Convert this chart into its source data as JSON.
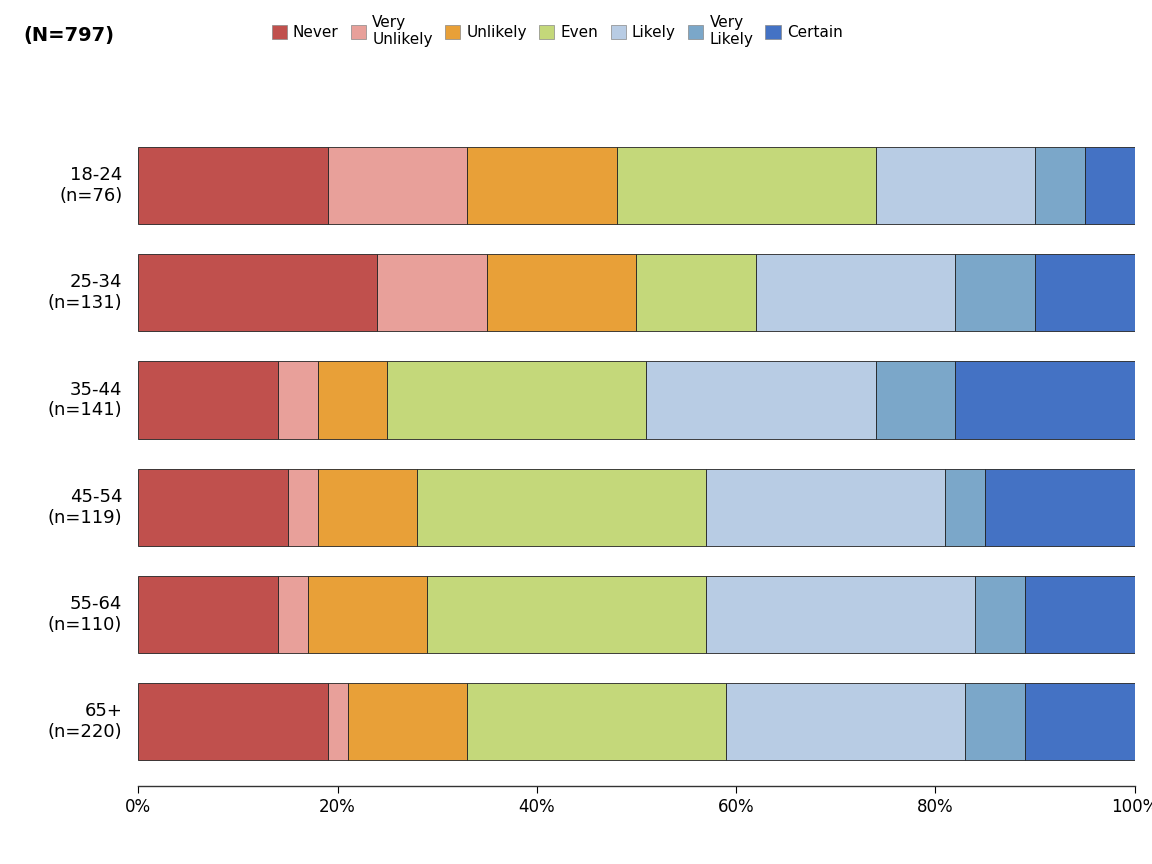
{
  "title": "(N=797)",
  "categories": [
    "18-24\n(n=76)",
    "25-34\n(n=131)",
    "35-44\n(n=141)",
    "45-54\n(n=119)",
    "55-64\n(n=110)",
    "65+\n(n=220)"
  ],
  "legend_labels": [
    "Never",
    "Very\nUnlikely",
    "Unlikely",
    "Even",
    "Likely",
    "Very\nLikely",
    "Certain"
  ],
  "colors": [
    "#c0504d",
    "#e8a09a",
    "#e8a038",
    "#c4d87a",
    "#b8cce4",
    "#7ba7c9",
    "#4472c4"
  ],
  "data": [
    [
      19.0,
      14.0,
      15.0,
      26.0,
      16.0,
      5.0,
      5.0
    ],
    [
      24.0,
      11.0,
      15.0,
      12.0,
      20.0,
      8.0,
      10.0
    ],
    [
      14.0,
      4.0,
      7.0,
      26.0,
      23.0,
      8.0,
      18.0
    ],
    [
      15.0,
      3.0,
      10.0,
      29.0,
      24.0,
      4.0,
      15.0
    ],
    [
      14.0,
      3.0,
      12.0,
      28.0,
      27.0,
      5.0,
      11.0
    ],
    [
      19.0,
      2.0,
      12.0,
      26.0,
      24.0,
      6.0,
      11.0
    ]
  ],
  "background_color": "#ffffff",
  "bar_edgecolor": "#222222",
  "bar_height": 0.72,
  "xlim": [
    0,
    100
  ],
  "xtick_labels": [
    "0%",
    "20%",
    "40%",
    "60%",
    "80%",
    "100%"
  ],
  "xtick_vals": [
    0,
    20,
    40,
    60,
    80,
    100
  ]
}
